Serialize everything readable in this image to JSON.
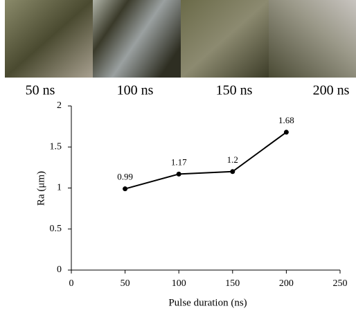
{
  "images": {
    "labels": [
      "50 ns",
      "100 ns",
      "150 ns",
      "200 ns"
    ]
  },
  "chart_data": {
    "type": "line",
    "xlabel": "Pulse duration  (ns)",
    "ylabel": "Ra (μm)",
    "x": [
      50,
      100,
      150,
      200
    ],
    "values": [
      0.99,
      1.17,
      1.2,
      1.68
    ],
    "color": "#000000",
    "xlim": [
      0,
      250
    ],
    "xticks": [
      0,
      50,
      100,
      150,
      200,
      250
    ],
    "ylim": [
      0,
      2
    ],
    "yticks": [
      0,
      0.5,
      1,
      1.5,
      2
    ],
    "grid": false
  }
}
